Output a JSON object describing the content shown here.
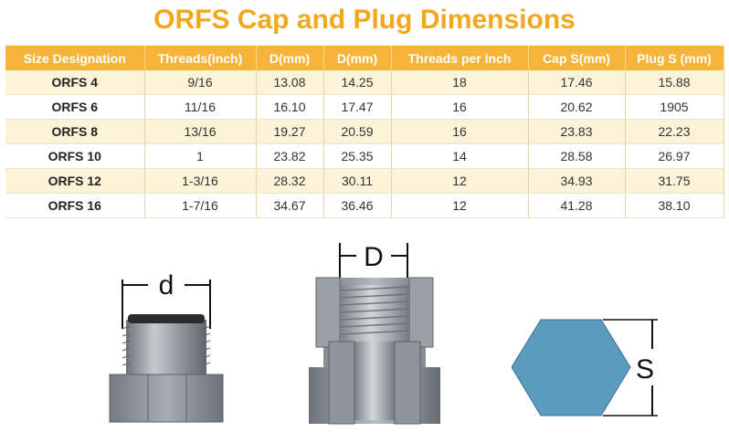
{
  "title": "ORFS Cap and Plug Dimensions",
  "table": {
    "headers": [
      "Size Designation",
      "Threads(inch)",
      "D(mm)",
      "D(mm)",
      "Threads per Inch",
      "Cap S(mm)",
      "Plug S (mm)"
    ],
    "rows": [
      [
        "ORFS 4",
        "9/16",
        "13.08",
        "14.25",
        "18",
        "17.46",
        "15.88"
      ],
      [
        "ORFS 6",
        "11/16",
        "16.10",
        "17.47",
        "16",
        "20.62",
        "1905"
      ],
      [
        "ORFS 8",
        "13/16",
        "19.27",
        "20.59",
        "16",
        "23.83",
        "22.23"
      ],
      [
        "ORFS 10",
        "1",
        "23.82",
        "25.35",
        "14",
        "28.58",
        "26.97"
      ],
      [
        "ORFS 12",
        "1-3/16",
        "28.32",
        "30.11",
        "12",
        "34.93",
        "31.75"
      ],
      [
        "ORFS 16",
        "1-7/16",
        "34.67",
        "36.46",
        "12",
        "41.28",
        "38.10"
      ]
    ]
  },
  "figures": {
    "plug_label": "d",
    "cap_label": "D",
    "hex_label": "S",
    "hex_color": "#5b9bbd",
    "metal_color": "#8c9499"
  }
}
